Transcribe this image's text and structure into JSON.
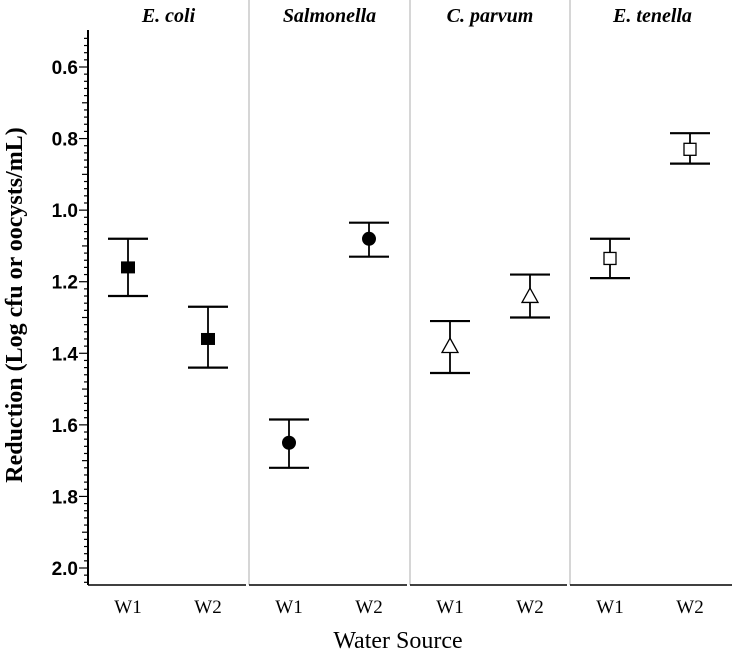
{
  "chart_data": {
    "type": "scatter",
    "xlabel": "Water Source",
    "ylabel": "Reduction (Log cfu or oocysts/mL)",
    "y_inverted": true,
    "ylim": [
      0.5,
      2.05
    ],
    "yticks": [
      "0.6",
      "0.8",
      "1.0",
      "1.2",
      "1.4",
      "1.6",
      "1.8",
      "2.0"
    ],
    "ytick_values": [
      0.6,
      0.8,
      1.0,
      1.2,
      1.4,
      1.6,
      1.8,
      2.0
    ],
    "grid": false,
    "categories": [
      "W1",
      "W2"
    ],
    "panels": [
      {
        "title": "E. coli",
        "marker": "filled-square",
        "points": [
          {
            "x": "W1",
            "y": 1.16,
            "lower": 1.08,
            "upper": 1.24
          },
          {
            "x": "W2",
            "y": 1.36,
            "lower": 1.27,
            "upper": 1.44
          }
        ]
      },
      {
        "title": "Salmonella",
        "marker": "filled-circle",
        "points": [
          {
            "x": "W1",
            "y": 1.65,
            "lower": 1.585,
            "upper": 1.72
          },
          {
            "x": "W2",
            "y": 1.08,
            "lower": 1.035,
            "upper": 1.13
          }
        ]
      },
      {
        "title": "C. parvum",
        "marker": "open-triangle",
        "points": [
          {
            "x": "W1",
            "y": 1.38,
            "lower": 1.31,
            "upper": 1.455
          },
          {
            "x": "W2",
            "y": 1.24,
            "lower": 1.18,
            "upper": 1.3
          }
        ]
      },
      {
        "title": "E. tenella",
        "marker": "open-square",
        "points": [
          {
            "x": "W1",
            "y": 1.135,
            "lower": 1.08,
            "upper": 1.19
          },
          {
            "x": "W2",
            "y": 0.83,
            "lower": 0.785,
            "upper": 0.87
          }
        ]
      }
    ],
    "colors": {
      "marker": "#000000",
      "errorbar": "#000000",
      "panel_divider": "#c8c8c8",
      "axis": "#000000"
    }
  }
}
